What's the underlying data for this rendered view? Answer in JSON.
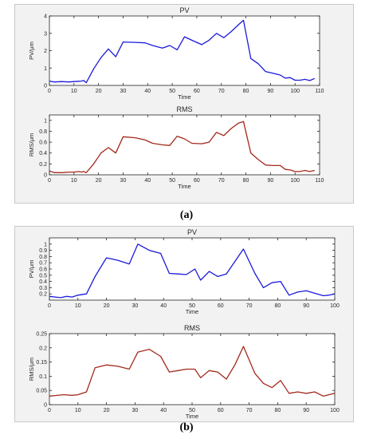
{
  "captions": [
    "(a)",
    "(b)"
  ],
  "colors": {
    "pv": "#1a1adb",
    "rms": "#a3291d",
    "axes": "#262626",
    "panel_bg": "#f2f2f2"
  },
  "chart_data": [
    {
      "type": "line",
      "panel": "a",
      "title": "PV",
      "xlabel": "Time",
      "ylabel": "PV/μm",
      "xlim": [
        0,
        110
      ],
      "ylim": [
        0,
        4
      ],
      "xticks": [
        0,
        10,
        20,
        30,
        40,
        50,
        60,
        70,
        80,
        90,
        100,
        110
      ],
      "yticks": [
        0,
        1,
        2,
        3,
        4
      ],
      "series": [
        {
          "color": "#1a1adb",
          "x": [
            0,
            2,
            5,
            8,
            10,
            12,
            13,
            14,
            15,
            18,
            21,
            24,
            27,
            30,
            35,
            39,
            42,
            46,
            49,
            52,
            55,
            58,
            62,
            65,
            68,
            71,
            74,
            77,
            79,
            82,
            85,
            88,
            91,
            94,
            96,
            98,
            100,
            102,
            104,
            106,
            108
          ],
          "y": [
            0.25,
            0.2,
            0.22,
            0.2,
            0.22,
            0.24,
            0.25,
            0.28,
            0.15,
            0.95,
            1.6,
            2.1,
            1.65,
            2.5,
            2.48,
            2.45,
            2.3,
            2.15,
            2.3,
            2.05,
            2.8,
            2.6,
            2.35,
            2.6,
            3.0,
            2.75,
            3.1,
            3.5,
            3.75,
            1.55,
            1.25,
            0.8,
            0.7,
            0.6,
            0.42,
            0.45,
            0.3,
            0.3,
            0.35,
            0.28,
            0.4
          ]
        }
      ]
    },
    {
      "type": "line",
      "panel": "a",
      "title": "RMS",
      "xlabel": "Time",
      "ylabel": "RMS/μm",
      "xlim": [
        0,
        110
      ],
      "ylim": [
        0,
        1.1
      ],
      "xticks": [
        0,
        10,
        20,
        30,
        40,
        50,
        60,
        70,
        80,
        90,
        100,
        110
      ],
      "yticks": [
        0,
        0.2,
        0.4,
        0.6,
        0.8,
        1
      ],
      "series": [
        {
          "color": "#a3291d",
          "x": [
            0,
            2,
            5,
            8,
            10,
            12,
            13,
            14,
            15,
            18,
            21,
            24,
            27,
            30,
            35,
            39,
            42,
            46,
            49,
            52,
            55,
            58,
            62,
            65,
            68,
            71,
            74,
            77,
            79,
            82,
            85,
            88,
            91,
            94,
            96,
            98,
            100,
            102,
            104,
            106,
            108
          ],
          "y": [
            0.07,
            0.04,
            0.04,
            0.05,
            0.05,
            0.06,
            0.05,
            0.06,
            0.04,
            0.2,
            0.4,
            0.5,
            0.4,
            0.7,
            0.68,
            0.64,
            0.58,
            0.55,
            0.54,
            0.71,
            0.66,
            0.58,
            0.57,
            0.6,
            0.78,
            0.72,
            0.85,
            0.95,
            0.98,
            0.4,
            0.28,
            0.18,
            0.17,
            0.17,
            0.1,
            0.09,
            0.06,
            0.06,
            0.08,
            0.06,
            0.08
          ]
        }
      ]
    },
    {
      "type": "line",
      "panel": "b",
      "title": "PV",
      "xlabel": "Time",
      "ylabel": "PV/μm",
      "xlim": [
        0,
        100
      ],
      "ylim": [
        0.1,
        1.1
      ],
      "xticks": [
        0,
        10,
        20,
        30,
        40,
        50,
        60,
        70,
        80,
        90,
        100
      ],
      "yticks": [
        0.2,
        0.3,
        0.4,
        0.5,
        0.6,
        0.7,
        0.8,
        0.9,
        1
      ],
      "series": [
        {
          "color": "#1a1adb",
          "x": [
            0,
            2,
            4,
            6,
            8,
            10,
            13,
            16,
            20,
            24,
            28,
            31,
            35,
            39,
            42,
            45,
            48,
            51,
            53,
            56,
            59,
            62,
            65,
            68,
            72,
            75,
            78,
            81,
            84,
            87,
            90,
            93,
            96,
            98,
            100
          ],
          "y": [
            0.16,
            0.15,
            0.14,
            0.16,
            0.15,
            0.18,
            0.2,
            0.48,
            0.78,
            0.74,
            0.68,
            1.0,
            0.9,
            0.85,
            0.53,
            0.52,
            0.51,
            0.6,
            0.42,
            0.56,
            0.48,
            0.52,
            0.72,
            0.92,
            0.53,
            0.3,
            0.38,
            0.4,
            0.18,
            0.23,
            0.25,
            0.21,
            0.17,
            0.18,
            0.2
          ]
        }
      ]
    },
    {
      "type": "line",
      "panel": "b",
      "title": "RMS",
      "xlabel": "Time",
      "ylabel": "RMS/μm",
      "xlim": [
        0,
        100
      ],
      "ylim": [
        0,
        0.25
      ],
      "xticks": [
        0,
        10,
        20,
        30,
        40,
        50,
        60,
        70,
        80,
        90,
        100
      ],
      "yticks": [
        0,
        0.05,
        0.1,
        0.15,
        0.2,
        0.25
      ],
      "series": [
        {
          "color": "#a3291d",
          "x": [
            0,
            2,
            5,
            8,
            10,
            13,
            16,
            20,
            24,
            28,
            31,
            35,
            39,
            42,
            45,
            48,
            51,
            53,
            56,
            59,
            62,
            65,
            68,
            72,
            75,
            78,
            81,
            84,
            87,
            90,
            93,
            96,
            98,
            100
          ],
          "y": [
            0.03,
            0.032,
            0.035,
            0.033,
            0.035,
            0.045,
            0.13,
            0.14,
            0.135,
            0.125,
            0.185,
            0.195,
            0.17,
            0.115,
            0.12,
            0.125,
            0.125,
            0.095,
            0.12,
            0.115,
            0.09,
            0.14,
            0.205,
            0.11,
            0.075,
            0.06,
            0.085,
            0.04,
            0.045,
            0.04,
            0.045,
            0.03,
            0.035,
            0.04
          ]
        }
      ]
    }
  ]
}
